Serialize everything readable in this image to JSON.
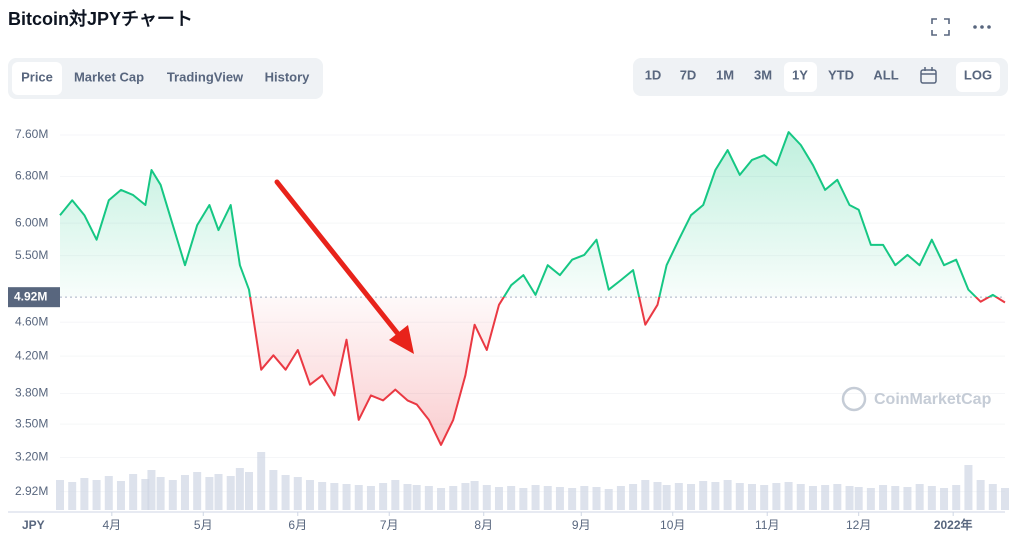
{
  "header": {
    "title": "Bitcoin対JPYチャート"
  },
  "ui": {
    "tabs": [
      "Price",
      "Market Cap",
      "TradingView",
      "History"
    ],
    "active_tab": 0,
    "ranges": [
      "1D",
      "7D",
      "1M",
      "3M",
      "1Y",
      "YTD",
      "ALL"
    ],
    "active_range": 4,
    "log_button": "LOG"
  },
  "chart_data": {
    "type": "line",
    "log_scale": true,
    "up_color": "#16c784",
    "down_color": "#ea3943",
    "y_unit": "JPY",
    "watermark": "CoinMarketCap",
    "reference": {
      "value": 4920000,
      "label": "4.92M"
    },
    "xlim": [
      0,
      310
    ],
    "xticks": [
      {
        "value": 17,
        "label": "4月"
      },
      {
        "value": 47,
        "label": "5月"
      },
      {
        "value": 78,
        "label": "6月"
      },
      {
        "value": 108,
        "label": "7月"
      },
      {
        "value": 139,
        "label": "8月"
      },
      {
        "value": 171,
        "label": "9月"
      },
      {
        "value": 201,
        "label": "10月"
      },
      {
        "value": 232,
        "label": "11月"
      },
      {
        "value": 262,
        "label": "12月"
      },
      {
        "value": 293,
        "label": "2022年"
      }
    ],
    "ylim": [
      2780000,
      8020000
    ],
    "yticks": [
      {
        "value": 2920000,
        "label": "2.92M"
      },
      {
        "value": 3200000,
        "label": "3.20M"
      },
      {
        "value": 3500000,
        "label": "3.50M"
      },
      {
        "value": 3800000,
        "label": "3.80M"
      },
      {
        "value": 4200000,
        "label": "4.20M"
      },
      {
        "value": 4600000,
        "label": "4.60M"
      },
      {
        "value": 5500000,
        "label": "5.50M"
      },
      {
        "value": 6000000,
        "label": "6.00M"
      },
      {
        "value": 6800000,
        "label": "6.80M"
      },
      {
        "value": 7600000,
        "label": "7.60M"
      }
    ],
    "x": [
      0,
      4,
      8,
      12,
      16,
      20,
      24,
      28,
      30,
      33,
      37,
      41,
      45,
      49,
      52,
      56,
      59,
      62,
      66,
      70,
      74,
      78,
      82,
      86,
      90,
      94,
      98,
      102,
      106,
      110,
      114,
      117,
      121,
      125,
      129,
      133,
      136,
      140,
      144,
      148,
      152,
      156,
      160,
      164,
      168,
      172,
      176,
      180,
      184,
      188,
      192,
      196,
      199,
      203,
      207,
      211,
      215,
      219,
      223,
      227,
      231,
      235,
      239,
      243,
      247,
      251,
      255,
      259,
      262,
      266,
      270,
      274,
      278,
      282,
      286,
      290,
      294,
      298,
      302,
      306,
      310
    ],
    "values": [
      6130000,
      6380000,
      6130000,
      5740000,
      6380000,
      6560000,
      6470000,
      6300000,
      6920000,
      6650000,
      5970000,
      5360000,
      5970000,
      6300000,
      5890000,
      6300000,
      5360000,
      5020000,
      4050000,
      4210000,
      4050000,
      4270000,
      3890000,
      3990000,
      3780000,
      4390000,
      3540000,
      3780000,
      3730000,
      3840000,
      3730000,
      3690000,
      3540000,
      3310000,
      3540000,
      3990000,
      4570000,
      4270000,
      4820000,
      5080000,
      5220000,
      4950000,
      5360000,
      5220000,
      5440000,
      5510000,
      5740000,
      5020000,
      5150000,
      5290000,
      4570000,
      4820000,
      5360000,
      5740000,
      6130000,
      6300000,
      6920000,
      7300000,
      6830000,
      7110000,
      7200000,
      7010000,
      7660000,
      7400000,
      7010000,
      6560000,
      6740000,
      6300000,
      6220000,
      5660000,
      5660000,
      5360000,
      5510000,
      5360000,
      5740000,
      5360000,
      5440000,
      5020000,
      4860000,
      4950000,
      4850000
    ],
    "volume": {
      "color": "#cfd6e4",
      "values": [
        30,
        28,
        32,
        30,
        34,
        29,
        36,
        31,
        40,
        33,
        30,
        35,
        38,
        33,
        36,
        34,
        42,
        38,
        58,
        40,
        35,
        33,
        30,
        28,
        27,
        26,
        25,
        24,
        27,
        30,
        26,
        25,
        24,
        22,
        24,
        27,
        29,
        25,
        23,
        24,
        22,
        25,
        24,
        23,
        22,
        24,
        23,
        21,
        24,
        26,
        30,
        28,
        25,
        27,
        26,
        29,
        28,
        30,
        27,
        26,
        25,
        27,
        28,
        26,
        24,
        25,
        26,
        24,
        23,
        22,
        25,
        24,
        23,
        26,
        24,
        22,
        25,
        45,
        30,
        26,
        22
      ]
    }
  }
}
